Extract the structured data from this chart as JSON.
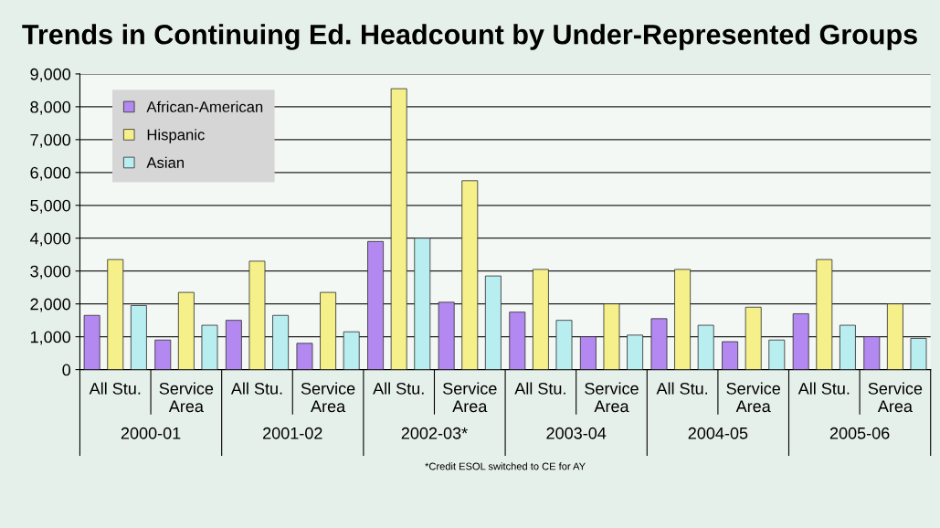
{
  "chart_data": {
    "type": "bar",
    "title": "Trends in Continuing Ed. Headcount by Under-Represented Groups",
    "categories": [
      "All Stu.",
      "Service Area",
      "All Stu.",
      "Service Area",
      "All Stu.",
      "Service Area",
      "All Stu.",
      "Service Area",
      "All Stu.",
      "Service Area",
      "All Stu.",
      "Service Area"
    ],
    "series": [
      {
        "name": "African-American",
        "color": "#b388f0",
        "values": [
          1650,
          900,
          1500,
          800,
          3900,
          2050,
          1750,
          1000,
          1550,
          850,
          1700,
          1000
        ]
      },
      {
        "name": "Hispanic",
        "color": "#f5f08a",
        "values": [
          3350,
          2350,
          3300,
          2350,
          8550,
          5750,
          3050,
          2000,
          3050,
          1900,
          3350,
          2000
        ]
      },
      {
        "name": "Asian",
        "color": "#b8eef0",
        "values": [
          1950,
          1350,
          1650,
          1150,
          4000,
          2850,
          1500,
          1050,
          1350,
          900,
          1350,
          950
        ]
      }
    ],
    "annotations": [
      "2000-01",
      "2001-02",
      "2002-03*",
      "2003-04",
      "2004-05",
      "2005-06",
      "*Credit ESOL switched to CE for AY"
    ],
    "ylim": [
      0,
      9000
    ],
    "yticks": [
      {
        "value": 0,
        "label": "0"
      },
      {
        "value": 1000,
        "label": "1,000"
      },
      {
        "value": 2000,
        "label": "2,000"
      },
      {
        "value": 3000,
        "label": "3,000"
      },
      {
        "value": 4000,
        "label": "4,000"
      },
      {
        "value": 5000,
        "label": "5,000"
      },
      {
        "value": 6000,
        "label": "6,000"
      },
      {
        "value": 7000,
        "label": "7,000"
      },
      {
        "value": 8000,
        "label": "8,000"
      },
      {
        "value": 9000,
        "label": "9,000"
      }
    ],
    "grid": "y",
    "legend": "top left"
  }
}
